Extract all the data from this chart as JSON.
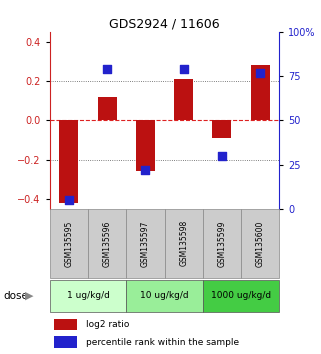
{
  "title": "GDS2924 / 11606",
  "samples": [
    "GSM135595",
    "GSM135596",
    "GSM135597",
    "GSM135598",
    "GSM135599",
    "GSM135600"
  ],
  "log2_ratio": [
    -0.42,
    0.12,
    -0.26,
    0.21,
    -0.09,
    0.28
  ],
  "percentile_rank": [
    5,
    79,
    22,
    79,
    30,
    77
  ],
  "doses": [
    {
      "label": "1 ug/kg/d",
      "start": 0,
      "end": 2,
      "color": "#ccffcc"
    },
    {
      "label": "10 ug/kg/d",
      "start": 2,
      "end": 4,
      "color": "#99ee99"
    },
    {
      "label": "1000 ug/kg/d",
      "start": 4,
      "end": 6,
      "color": "#44cc44"
    }
  ],
  "ylim_left": [
    -0.45,
    0.45
  ],
  "ylim_right": [
    0,
    100
  ],
  "bar_color": "#bb1111",
  "dot_color": "#2222cc",
  "bar_width": 0.5,
  "dot_size": 28,
  "hline_zero_color": "#dd2222",
  "hline_dotted_color": "#555555",
  "sample_box_color": "#cccccc",
  "dose_label": "dose",
  "legend_bar": "log2 ratio",
  "legend_dot": "percentile rank within the sample",
  "yticks_left": [
    -0.4,
    -0.2,
    0,
    0.2,
    0.4
  ],
  "yticks_right": [
    0,
    25,
    50,
    75,
    100
  ],
  "ytick_labels_right": [
    "0",
    "25",
    "50",
    "75",
    "100%"
  ],
  "left_axis_color": "#cc2222",
  "right_axis_color": "#2222cc"
}
